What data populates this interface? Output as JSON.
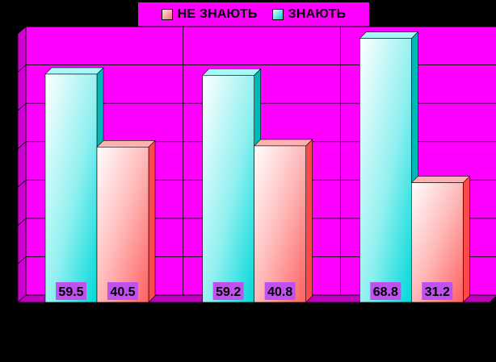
{
  "chart_data": {
    "type": "bar",
    "categories": [
      "",
      "",
      ""
    ],
    "series": [
      {
        "name": "ЗНАЮТЬ",
        "values": [
          59.5,
          59.2,
          68.8
        ]
      },
      {
        "name": "НЕ ЗНАЮТЬ",
        "values": [
          40.5,
          40.8,
          31.2
        ]
      }
    ],
    "ylim": [
      0,
      70
    ],
    "grid": true,
    "legend_position": "top"
  },
  "legend": {
    "items": [
      {
        "label": "НЕ ЗНАЮТЬ",
        "color": "#FF8080"
      },
      {
        "label": "ЗНАЮТЬ",
        "color": "#00D8D8"
      }
    ]
  },
  "colors": {
    "plot_background": "#FF00FF",
    "page_background": "#000000",
    "znayut_front": "#00D8D8",
    "ne_znayut_front": "#FF6060",
    "label_background": "#C050F0"
  }
}
